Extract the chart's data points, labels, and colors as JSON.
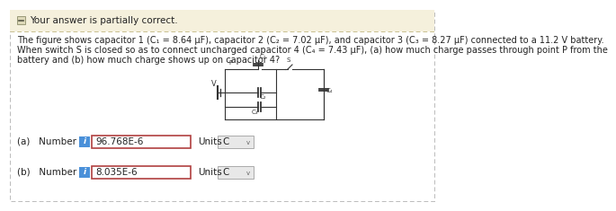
{
  "banner_text": "Your answer is partially correct.",
  "banner_bg": "#f5f0dc",
  "banner_border_color": "#c8c090",
  "body_bg": "#ffffff",
  "problem_line1": "The figure shows capacitor 1 (C₁ = 8.64 μF), capacitor 2 (C₂ = 7.02 μF), and capacitor 3 (C₃ = 8.27 μF) connected to a 11.2 V battery.",
  "problem_line2": "When switch S is closed so as to connect uncharged capacitor 4 (C₄ = 7.43 μF), (a) how much charge passes through point P from the",
  "problem_line3": "battery and (b) how much charge shows up on capacitor 4?",
  "part_a_label": "(a)   Number",
  "part_a_value": "96.768E-6",
  "part_a_units": "C",
  "part_b_label": "(b)   Number",
  "part_b_value": "8.035E-6",
  "part_b_units": "C",
  "text_color": "#222222",
  "input_border_color": "#b04040",
  "input_bg": "#ffffff",
  "info_icon_bg": "#4a90d9",
  "units_box_bg": "#e8e8e8",
  "units_box_border": "#aaaaaa",
  "outer_border": "#bbbbbb",
  "font_size_banner": 7.5,
  "font_size_body": 7.0,
  "font_size_answer": 7.5,
  "font_size_circuit": 5.0
}
